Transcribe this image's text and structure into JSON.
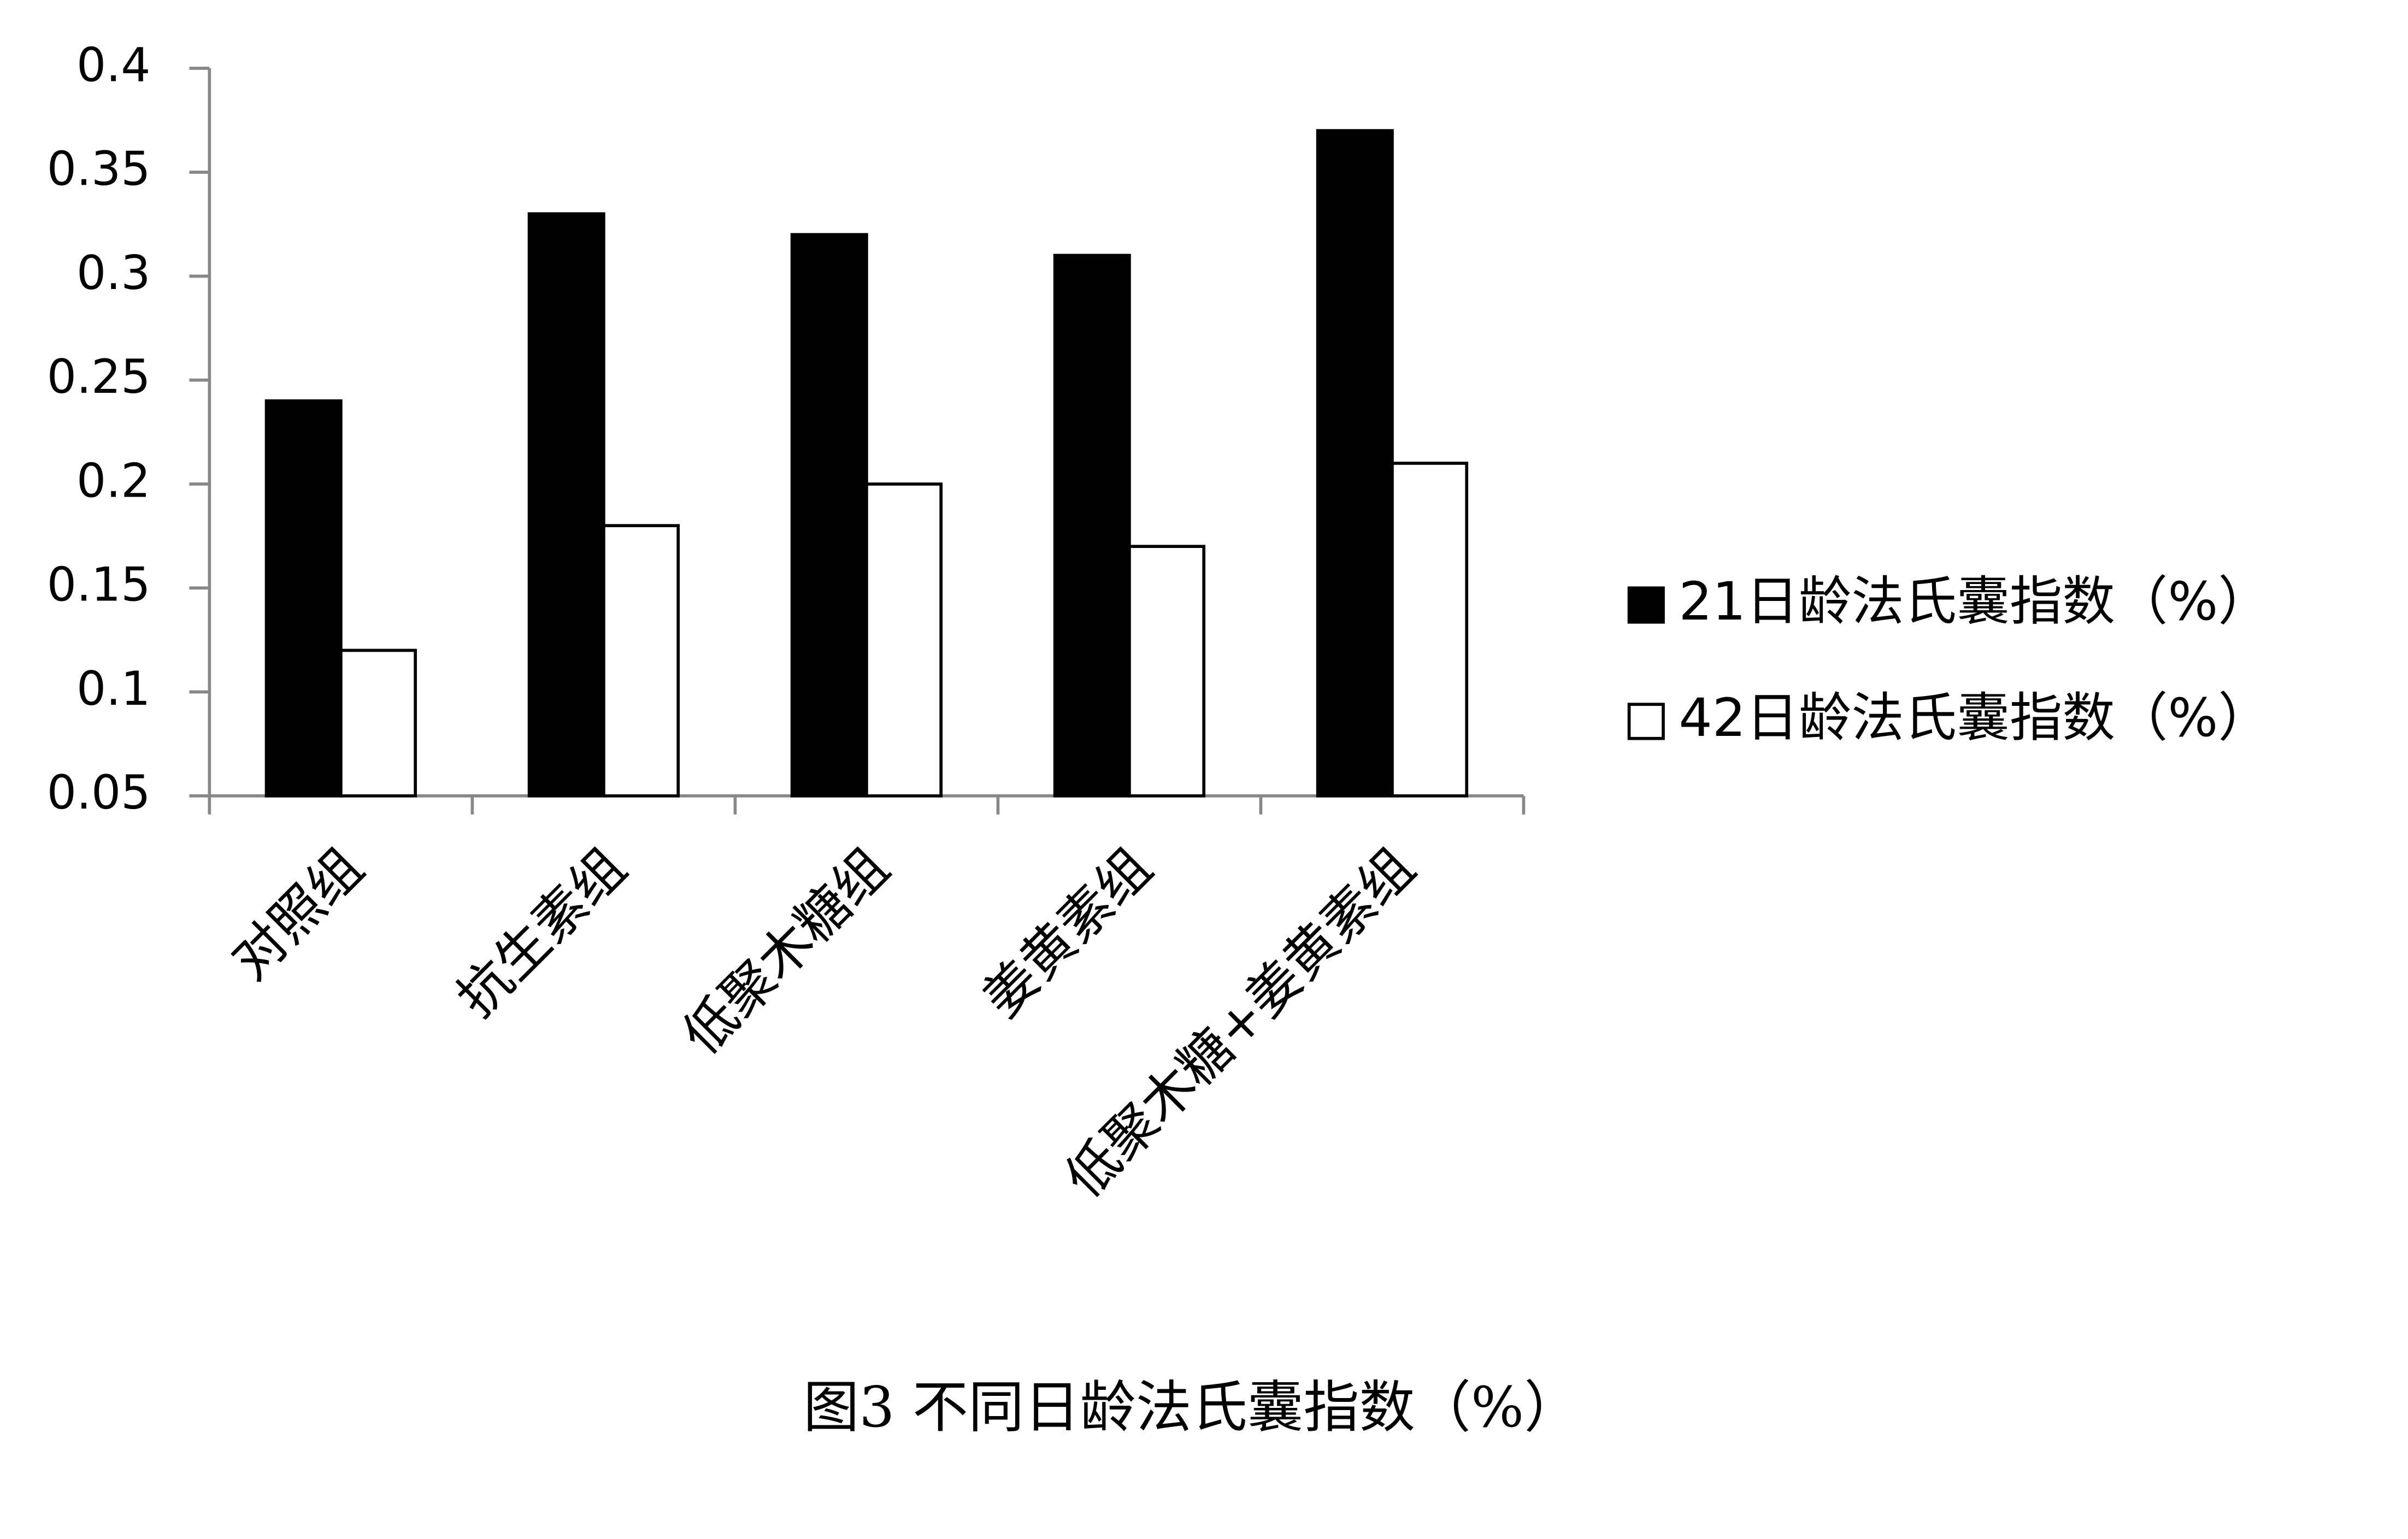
{
  "chart_data": {
    "type": "bar",
    "title": "图3 不同日龄法氏囊指数（%）",
    "categories": [
      "对照组",
      "抗生素组",
      "低聚木糖组",
      "姜黄素组",
      "低聚木糖+姜黄素组"
    ],
    "series": [
      {
        "name": "21日龄法氏囊指数（%）",
        "color": "#000000",
        "values": [
          0.24,
          0.33,
          0.32,
          0.31,
          0.37
        ]
      },
      {
        "name": "42日龄法氏囊指数（%）",
        "color": "#ffffff",
        "values": [
          0.12,
          0.18,
          0.2,
          0.17,
          0.21
        ]
      }
    ],
    "ylim": [
      0.05,
      0.4
    ],
    "yticks": [
      0.05,
      0.1,
      0.15,
      0.2,
      0.25,
      0.3,
      0.35,
      0.4
    ],
    "grid": false,
    "legend": "right"
  }
}
